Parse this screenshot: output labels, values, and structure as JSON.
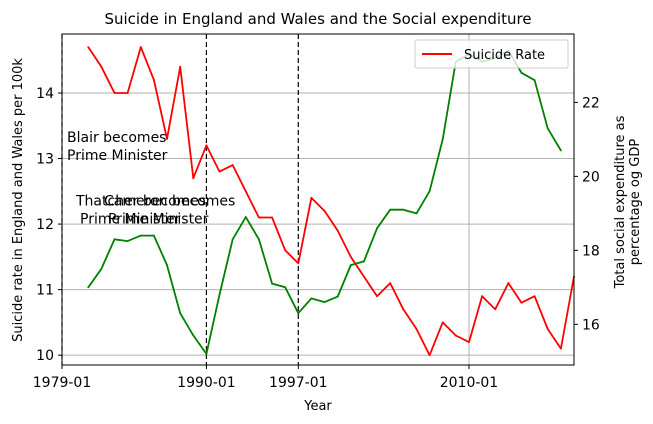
{
  "chart_data": {
    "type": "line",
    "title": "Suicide in England and Wales and the Social expenditure",
    "xlabel": "Year",
    "ylabel_left": "Suicide rate in England and Wales per 100k",
    "ylabel_right_lines": [
      "Total social expenditure as",
      "percentage og GDP"
    ],
    "xtick_labels": [
      "1979-01",
      "1990-01",
      "1997-01",
      "2010-01"
    ],
    "ylim_left": [
      9.85,
      14.9
    ],
    "yticks_left": [
      10,
      11,
      12,
      13,
      14
    ],
    "ylim_right": [
      14.9,
      23.85
    ],
    "yticks_right": [
      16,
      18,
      20,
      22
    ],
    "grid": true,
    "legend": {
      "position": "top-right",
      "entries": [
        "Suicide Rate"
      ]
    },
    "series": [
      {
        "name": "Suicide Rate",
        "axis": "left",
        "color": "#ff0000",
        "x": [
          1981,
          1982,
          1983,
          1984,
          1985,
          1986,
          1987,
          1988,
          1989,
          1990,
          1991,
          1992,
          1993,
          1994,
          1995,
          1996,
          1997,
          1998,
          1999,
          2000,
          2001,
          2002,
          2003,
          2004,
          2005,
          2006,
          2007,
          2008,
          2009,
          2010,
          2011,
          2012,
          2013,
          2014,
          2015,
          2016,
          2017,
          2018
        ],
        "values": [
          14.7,
          14.4,
          14.0,
          14.0,
          14.7,
          14.2,
          13.3,
          14.4,
          12.7,
          13.2,
          12.8,
          12.9,
          12.5,
          12.1,
          12.1,
          11.6,
          11.4,
          12.4,
          12.2,
          11.9,
          11.5,
          11.2,
          10.9,
          11.1,
          10.7,
          10.4,
          10.0,
          10.5,
          10.3,
          10.2,
          10.9,
          10.7,
          11.1,
          10.8,
          10.9,
          10.4,
          10.1,
          11.2
        ]
      },
      {
        "name": "",
        "axis": "right",
        "color": "#008000",
        "x": [
          1981,
          1982,
          1983,
          1984,
          1985,
          1986,
          1987,
          1988,
          1989,
          1990,
          1991,
          1992,
          1993,
          1994,
          1995,
          1996,
          1997,
          1998,
          1999,
          2000,
          2001,
          2002,
          2003,
          2004,
          2005,
          2006,
          2007,
          2008,
          2009,
          2010,
          2011,
          2012,
          2013,
          2014,
          2015,
          2016,
          2017
        ],
        "values": [
          17.0,
          17.5,
          18.3,
          18.25,
          18.4,
          18.4,
          17.6,
          16.3,
          15.7,
          15.2,
          16.8,
          18.3,
          18.9,
          18.3,
          17.1,
          17.0,
          16.3,
          16.7,
          16.6,
          16.75,
          17.6,
          17.7,
          18.6,
          19.1,
          19.1,
          19.0,
          19.6,
          21.0,
          23.1,
          23.3,
          23.1,
          23.2,
          23.4,
          22.8,
          22.6,
          21.3,
          20.7
        ]
      }
    ],
    "vlines": [
      {
        "x": 1979,
        "style": "dashed",
        "label_lines": [
          "Thatcher becomes",
          "Prime Minister"
        ]
      },
      {
        "x": 1990,
        "style": "dashed",
        "label_lines": [
          "Blair becomes",
          "Prime Minister"
        ]
      },
      {
        "x": 1997,
        "style": "dashed",
        "label_lines": [
          "Cameron becomes",
          "Prime Minister"
        ]
      },
      {
        "x": 2010,
        "style": "solid-grid"
      }
    ]
  }
}
